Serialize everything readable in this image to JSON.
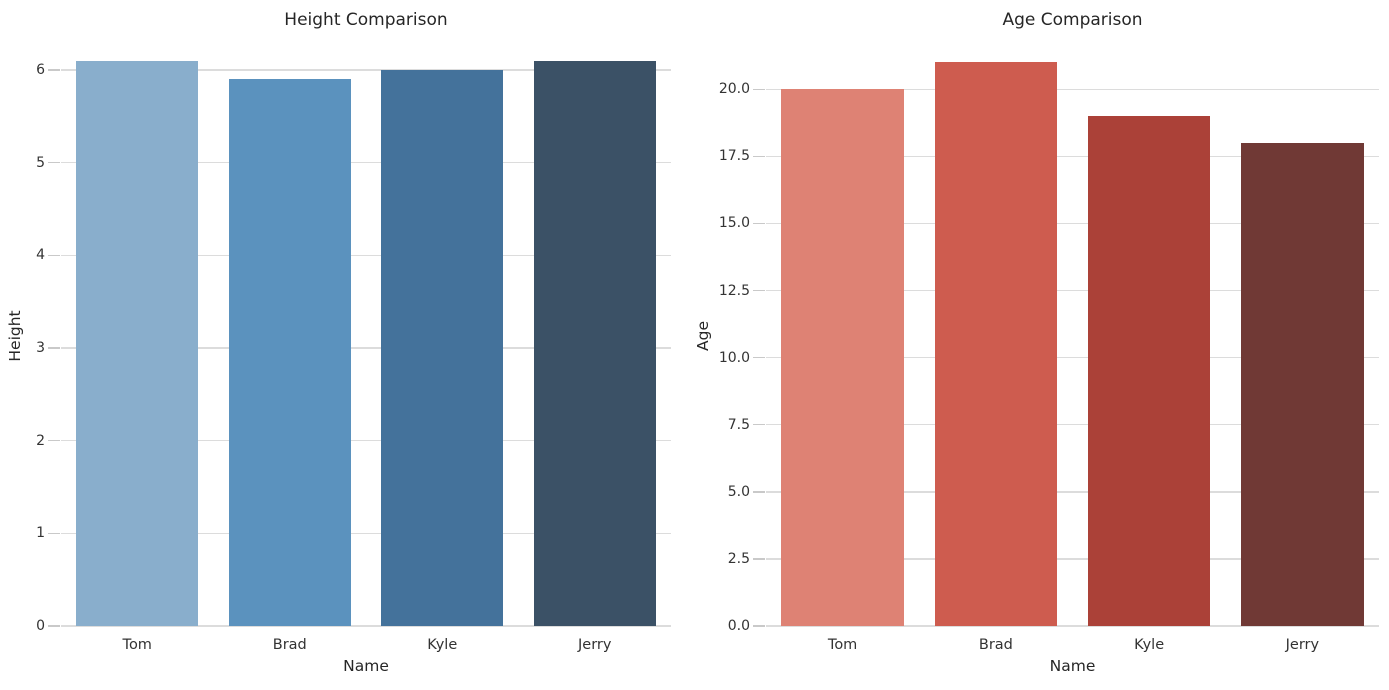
{
  "figure": {
    "background": "#ffffff",
    "grid_color": "#dcdcdc",
    "tick_mark_color": "#c9c9c9",
    "text_color": "#262626",
    "tick_text_color": "#333333"
  },
  "chart_data": [
    {
      "type": "bar",
      "title": "Height Comparison",
      "xlabel": "Name",
      "ylabel": "Height",
      "categories": [
        "Tom",
        "Brad",
        "Kyle",
        "Jerry"
      ],
      "values": [
        6.1,
        5.9,
        6.0,
        6.1
      ],
      "bar_colors": [
        "#89AECC",
        "#5B92BE",
        "#44729B",
        "#3B5166"
      ],
      "palette": "Blues_d",
      "ylim": [
        0,
        6.27
      ],
      "ytick_values": [
        0,
        1,
        2,
        3,
        4,
        5,
        6
      ],
      "ytick_labels": [
        "0",
        "1",
        "2",
        "3",
        "4",
        "5",
        "6"
      ],
      "grid": true,
      "legend": false
    },
    {
      "type": "bar",
      "title": "Age Comparison",
      "xlabel": "Name",
      "ylabel": "Age",
      "categories": [
        "Tom",
        "Brad",
        "Kyle",
        "Jerry"
      ],
      "values": [
        20,
        21,
        19,
        18
      ],
      "bar_colors": [
        "#DE8274",
        "#CE5C4F",
        "#AB4138",
        "#703935"
      ],
      "palette": "Reds_d",
      "ylim": [
        0,
        21.65
      ],
      "ytick_values": [
        0,
        2.5,
        5,
        7.5,
        10,
        12.5,
        15,
        17.5,
        20
      ],
      "ytick_labels": [
        "0.0",
        "2.5",
        "5.0",
        "7.5",
        "10.0",
        "12.5",
        "15.0",
        "17.5",
        "20.0"
      ],
      "grid": true,
      "legend": false
    }
  ]
}
